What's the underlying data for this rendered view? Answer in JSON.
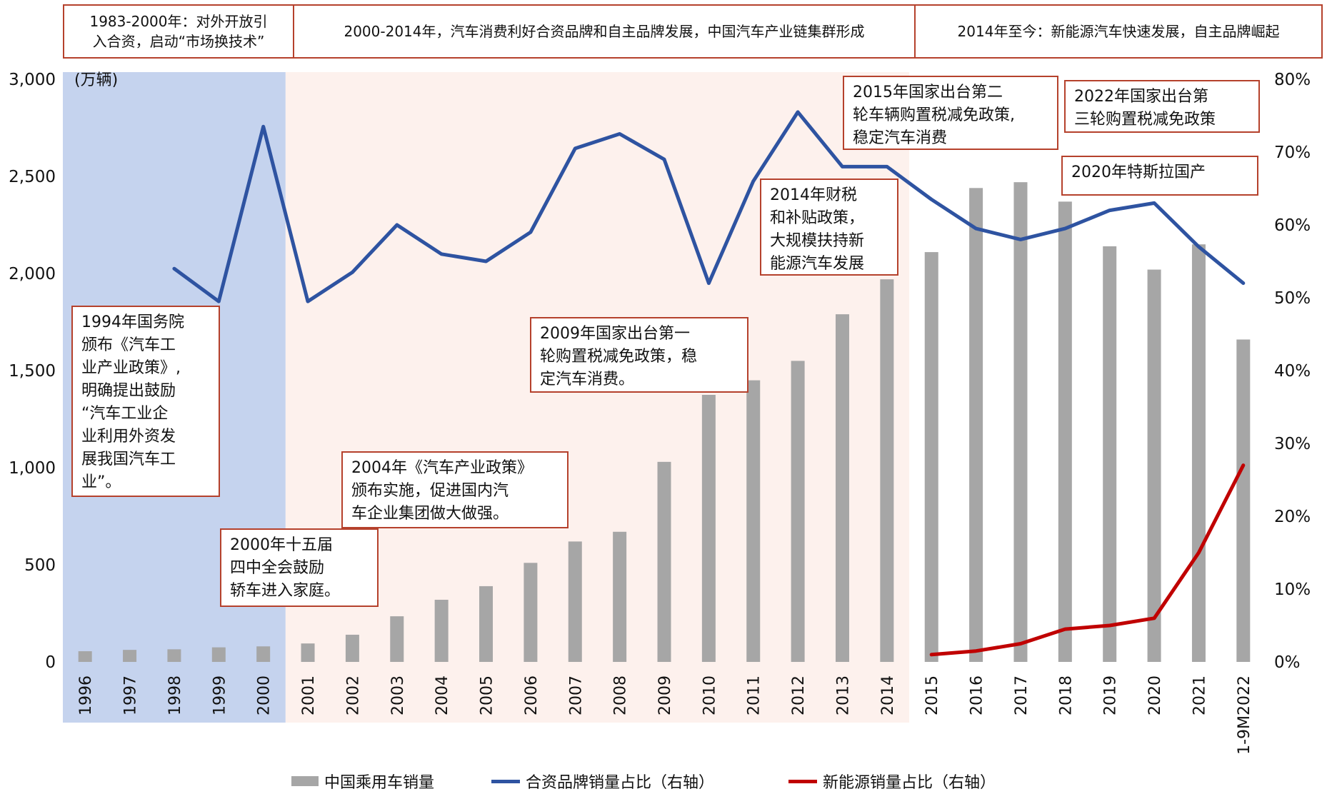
{
  "periods": [
    {
      "label": "1983-2000年：对外开放引\n入合资，启动“市场换技术”"
    },
    {
      "label": "2000-2014年，汽车消费利好合资品牌和自主品牌发展，中国汽车产业链集群形成"
    },
    {
      "label": "2014年至今：新能源汽车快速发展，自主品牌崛起"
    }
  ],
  "annotations": {
    "a1994": "1994年国务院\n颁布《汽车工\n业产业政策》,\n明确提出鼓励\n“汽车工业企\n业利用外资发\n展我国汽车工\n业”。",
    "a2000": "2000年十五届\n四中全会鼓励\n轿车进入家庭。",
    "a2004": "2004年《汽车产业政策》\n颁布实施，促进国内汽\n车企业集团做大做强。",
    "a2009": "2009年国家出台第一\n轮购置税减免政策，稳\n定汽车消费。",
    "a2014": "2014年财税\n和补贴政策，\n大规模扶持新\n能源汽车发展",
    "a2015": "2015年国家出台第二\n轮车辆购置税减免政策,\n稳定汽车消费",
    "a2022": "2022年国家出台第\n三轮购置税减免政策",
    "a2020": "2020年特斯拉国产"
  },
  "colors": {
    "bars": "#a6a6a6",
    "jv_line": "#2e53a1",
    "nev_line": "#c00000",
    "band1": "#c5d3ee",
    "band2": "#fdf1ed",
    "border": "#b5412c"
  },
  "chart_data": {
    "type": "bar",
    "categories": [
      "1996",
      "1997",
      "1998",
      "1999",
      "2000",
      "2001",
      "2002",
      "2003",
      "2004",
      "2005",
      "2006",
      "2007",
      "2008",
      "2009",
      "2010",
      "2011",
      "2012",
      "2013",
      "2014",
      "2015",
      "2016",
      "2017",
      "2018",
      "2019",
      "2020",
      "2021",
      "1-9M2022"
    ],
    "y_left_unit": "(万辆)",
    "ylim_left": [
      0,
      3000
    ],
    "yticks_left": [
      "0",
      "500",
      "1,000",
      "1,500",
      "2,000",
      "2,500",
      "3,000"
    ],
    "ylim_right": [
      0,
      80
    ],
    "yticks_right": [
      "0%",
      "10%",
      "20%",
      "30%",
      "40%",
      "50%",
      "60%",
      "70%",
      "80%"
    ],
    "series": [
      {
        "name": "中国乘用车销量",
        "type": "bar",
        "values": [
          55,
          62,
          65,
          75,
          80,
          95,
          140,
          235,
          320,
          390,
          510,
          620,
          670,
          1030,
          1375,
          1450,
          1550,
          1790,
          1970,
          2110,
          2440,
          2470,
          2370,
          2140,
          2020,
          2150,
          1660
        ]
      },
      {
        "name": "合资品牌销量占比（右轴）",
        "type": "line",
        "values": [
          null,
          null,
          54,
          49.5,
          73.5,
          49.5,
          53.5,
          60,
          56,
          55,
          59,
          70.5,
          72.5,
          69,
          52,
          66,
          75.5,
          68,
          68,
          63.5,
          59.5,
          58,
          59.5,
          62,
          63,
          57,
          52
        ]
      },
      {
        "name": "新能源销量占比（右轴）",
        "type": "line",
        "values": [
          null,
          null,
          null,
          null,
          null,
          null,
          null,
          null,
          null,
          null,
          null,
          null,
          null,
          null,
          null,
          null,
          null,
          null,
          null,
          1,
          1.5,
          2.5,
          4.5,
          5,
          6,
          15,
          27
        ]
      }
    ],
    "legend_position": "bottom"
  }
}
